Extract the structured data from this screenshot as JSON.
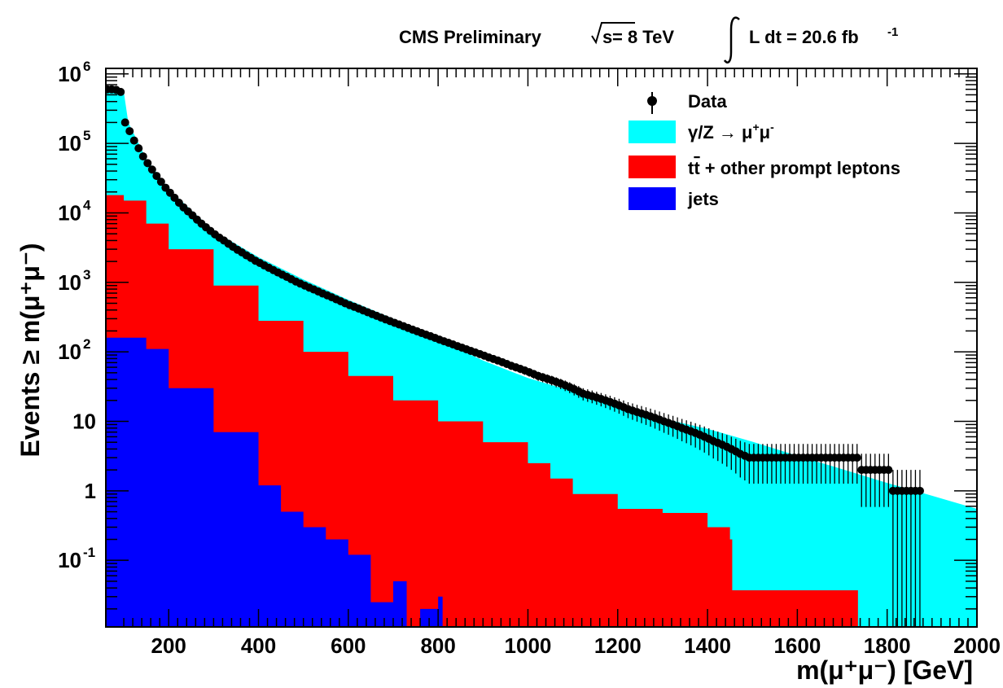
{
  "header": {
    "experiment": "CMS Preliminary",
    "energy_sqrt": "s",
    "energy_rest": " = 8 TeV",
    "lumi_text": "L dt = 20.6 fb",
    "lumi_exp": "-1"
  },
  "colors": {
    "dy": "#00ffff",
    "ttbar": "#ff0000",
    "jets": "#0000ff",
    "data": "#000000"
  },
  "chart_data": {
    "type": "area",
    "title": "",
    "xlabel": "m(μ⁺μ⁻) [GeV]",
    "ylabel": "Events ≥ m(μ⁺μ⁻)",
    "xlim": [
      60,
      2000
    ],
    "ylim": [
      0.011,
      1200000
    ],
    "yscale": "log",
    "grid": false,
    "legend_position": "top-right",
    "x_ticks": [
      "200",
      "400",
      "600",
      "800",
      "1000",
      "1200",
      "1400",
      "1600",
      "1800",
      "2000"
    ],
    "y_ticks": [
      {
        "value": 0.1,
        "base": "10",
        "exp": "-1"
      },
      {
        "value": 1,
        "base": "1",
        "exp": ""
      },
      {
        "value": 10,
        "base": "10",
        "exp": ""
      },
      {
        "value": 100,
        "base": "10",
        "exp": "2"
      },
      {
        "value": 1000,
        "base": "10",
        "exp": "3"
      },
      {
        "value": 10000,
        "base": "10",
        "exp": "4"
      },
      {
        "value": 100000,
        "base": "10",
        "exp": "5"
      },
      {
        "value": 1000000,
        "base": "10",
        "exp": "6"
      }
    ],
    "legend": {
      "data": "Data",
      "dy_pre": "γ/Z → μ",
      "dy_sup1": "+",
      "dy_mid": "μ",
      "dy_sup2": "-",
      "ttbar_pre": "t",
      "ttbar_bar": "t",
      "ttbar_post": " + other prompt leptons",
      "jets": "jets"
    },
    "series": [
      {
        "name": "γ/Z → μ⁺μ⁻",
        "kind": "stack-total",
        "points": [
          [
            60,
            600000
          ],
          [
            100,
            550000
          ],
          [
            110,
            200000
          ],
          [
            150,
            60000
          ],
          [
            200,
            22000
          ],
          [
            300,
            5500
          ],
          [
            400,
            2300
          ],
          [
            500,
            1100
          ],
          [
            600,
            560
          ],
          [
            700,
            300
          ],
          [
            800,
            150
          ],
          [
            900,
            75
          ],
          [
            1000,
            42
          ],
          [
            1100,
            27
          ],
          [
            1200,
            17
          ],
          [
            1300,
            11
          ],
          [
            1400,
            7.8
          ],
          [
            1500,
            5.1
          ],
          [
            1600,
            3.2
          ],
          [
            1700,
            2.05
          ],
          [
            1800,
            1.3
          ],
          [
            1900,
            0.85
          ],
          [
            2000,
            0.55
          ]
        ]
      },
      {
        "name": "tt̄ + other prompt leptons",
        "kind": "stack-total",
        "points": [
          [
            60,
            18000
          ],
          [
            100,
            15000
          ],
          [
            150,
            7000
          ],
          [
            200,
            3000
          ],
          [
            300,
            900
          ],
          [
            400,
            280
          ],
          [
            500,
            100
          ],
          [
            600,
            45
          ],
          [
            700,
            20
          ],
          [
            800,
            10
          ],
          [
            900,
            5
          ],
          [
            1000,
            2.5
          ],
          [
            1050,
            1.5
          ],
          [
            1100,
            0.9
          ],
          [
            1200,
            0.55
          ],
          [
            1300,
            0.48
          ],
          [
            1400,
            0.3
          ],
          [
            1450,
            0.2
          ],
          [
            1455,
            0.037
          ],
          [
            1730,
            0.037
          ],
          [
            1735,
            0.011
          ]
        ]
      },
      {
        "name": "jets",
        "points": [
          [
            60,
            160
          ],
          [
            100,
            160
          ],
          [
            150,
            110
          ],
          [
            200,
            30
          ],
          [
            300,
            7
          ],
          [
            400,
            1.2
          ],
          [
            450,
            0.5
          ],
          [
            500,
            0.3
          ],
          [
            550,
            0.2
          ],
          [
            600,
            0.12
          ],
          [
            650,
            0.025
          ],
          [
            700,
            0.05
          ],
          [
            730,
            0.011
          ],
          [
            760,
            0.02
          ],
          [
            800,
            0.03
          ],
          [
            810,
            0.011
          ]
        ]
      },
      {
        "name": "Data",
        "kind": "points",
        "points": [
          [
            63,
            600000
          ],
          [
            73,
            600000
          ],
          [
            83,
            590000
          ],
          [
            93,
            550000
          ],
          [
            103,
            200000
          ],
          [
            113,
            150000
          ],
          [
            123,
            110000
          ],
          [
            133,
            85000
          ],
          [
            143,
            65000
          ],
          [
            153,
            52000
          ],
          [
            163,
            42000
          ],
          [
            173,
            34000
          ],
          [
            183,
            28000
          ],
          [
            193,
            23000
          ],
          [
            203,
            19500
          ],
          [
            213,
            16500
          ],
          [
            223,
            14000
          ],
          [
            233,
            12000
          ],
          [
            243,
            10500
          ],
          [
            253,
            9200
          ],
          [
            263,
            8000
          ],
          [
            273,
            7000
          ],
          [
            283,
            6200
          ],
          [
            293,
            5500
          ],
          [
            303,
            4900
          ],
          [
            313,
            4400
          ],
          [
            323,
            4000
          ],
          [
            333,
            3600
          ],
          [
            343,
            3250
          ],
          [
            353,
            2950
          ],
          [
            363,
            2700
          ],
          [
            373,
            2450
          ],
          [
            383,
            2250
          ],
          [
            393,
            2050
          ],
          [
            403,
            1900
          ],
          [
            413,
            1750
          ],
          [
            423,
            1620
          ],
          [
            433,
            1500
          ],
          [
            443,
            1390
          ],
          [
            453,
            1290
          ],
          [
            463,
            1200
          ],
          [
            473,
            1110
          ],
          [
            483,
            1030
          ],
          [
            493,
            960
          ],
          [
            503,
            900
          ],
          [
            513,
            840
          ],
          [
            523,
            790
          ],
          [
            533,
            740
          ],
          [
            543,
            690
          ],
          [
            553,
            650
          ],
          [
            563,
            610
          ],
          [
            573,
            570
          ],
          [
            583,
            535
          ],
          [
            593,
            500
          ],
          [
            603,
            470
          ],
          [
            613,
            445
          ],
          [
            623,
            420
          ],
          [
            633,
            395
          ],
          [
            643,
            372
          ],
          [
            653,
            350
          ],
          [
            663,
            330
          ],
          [
            673,
            311
          ],
          [
            683,
            293
          ],
          [
            693,
            277
          ],
          [
            703,
            262
          ],
          [
            713,
            248
          ],
          [
            723,
            234
          ],
          [
            733,
            221
          ],
          [
            743,
            209
          ],
          [
            753,
            198
          ],
          [
            763,
            187
          ],
          [
            773,
            177
          ],
          [
            783,
            168
          ],
          [
            793,
            159
          ],
          [
            803,
            150
          ],
          [
            813,
            142
          ],
          [
            823,
            135
          ],
          [
            833,
            128
          ],
          [
            843,
            121
          ],
          [
            853,
            115
          ],
          [
            863,
            109
          ],
          [
            873,
            103
          ],
          [
            883,
            98
          ],
          [
            893,
            93
          ],
          [
            903,
            88
          ],
          [
            913,
            83
          ],
          [
            923,
            79
          ],
          [
            933,
            75
          ],
          [
            943,
            71
          ],
          [
            953,
            67
          ],
          [
            963,
            63
          ],
          [
            973,
            60
          ],
          [
            983,
            57
          ],
          [
            993,
            54
          ],
          [
            1003,
            51
          ],
          [
            1013,
            48
          ],
          [
            1023,
            45
          ],
          [
            1033,
            43
          ],
          [
            1043,
            41
          ],
          [
            1053,
            39
          ],
          [
            1063,
            37
          ],
          [
            1073,
            35
          ],
          [
            1083,
            33
          ],
          [
            1093,
            31
          ],
          [
            1103,
            29
          ],
          [
            1113,
            27
          ],
          [
            1123,
            25
          ],
          [
            1133,
            24
          ],
          [
            1143,
            23
          ],
          [
            1153,
            22
          ],
          [
            1163,
            21
          ],
          [
            1173,
            20
          ],
          [
            1183,
            19
          ],
          [
            1193,
            18
          ],
          [
            1203,
            17
          ],
          [
            1213,
            16
          ],
          [
            1223,
            15
          ],
          [
            1233,
            14.3
          ],
          [
            1243,
            13.6
          ],
          [
            1253,
            13
          ],
          [
            1263,
            12.4
          ],
          [
            1273,
            11.8
          ],
          [
            1283,
            11.2
          ],
          [
            1293,
            10.6
          ],
          [
            1303,
            10
          ],
          [
            1313,
            9.5
          ],
          [
            1323,
            9
          ],
          [
            1333,
            8.5
          ],
          [
            1343,
            8
          ],
          [
            1353,
            7.6
          ],
          [
            1363,
            7.2
          ],
          [
            1373,
            6.8
          ],
          [
            1383,
            6.4
          ],
          [
            1393,
            6
          ],
          [
            1403,
            5.6
          ],
          [
            1413,
            5.2
          ],
          [
            1423,
            4.9
          ],
          [
            1433,
            4.6
          ],
          [
            1443,
            4.3
          ],
          [
            1453,
            4
          ],
          [
            1463,
            3.7
          ],
          [
            1473,
            3.4
          ],
          [
            1483,
            3.2
          ],
          [
            1493,
            3
          ],
          [
            1503,
            3
          ],
          [
            1513,
            3
          ],
          [
            1523,
            3
          ],
          [
            1533,
            3
          ],
          [
            1543,
            3
          ],
          [
            1553,
            3
          ],
          [
            1563,
            3
          ],
          [
            1573,
            3
          ],
          [
            1583,
            3
          ],
          [
            1593,
            3
          ],
          [
            1603,
            3
          ],
          [
            1613,
            3
          ],
          [
            1623,
            3
          ],
          [
            1633,
            3
          ],
          [
            1643,
            3
          ],
          [
            1653,
            3
          ],
          [
            1663,
            3
          ],
          [
            1673,
            3
          ],
          [
            1683,
            3
          ],
          [
            1693,
            3
          ],
          [
            1703,
            3
          ],
          [
            1713,
            3
          ],
          [
            1723,
            3
          ],
          [
            1733,
            3
          ],
          [
            1743,
            2
          ],
          [
            1753,
            2
          ],
          [
            1763,
            2
          ],
          [
            1773,
            2
          ],
          [
            1783,
            2
          ],
          [
            1793,
            2
          ],
          [
            1803,
            2
          ],
          [
            1813,
            1
          ],
          [
            1823,
            1
          ],
          [
            1833,
            1
          ],
          [
            1843,
            1
          ],
          [
            1853,
            1
          ],
          [
            1863,
            1
          ],
          [
            1873,
            1
          ]
        ]
      }
    ]
  }
}
